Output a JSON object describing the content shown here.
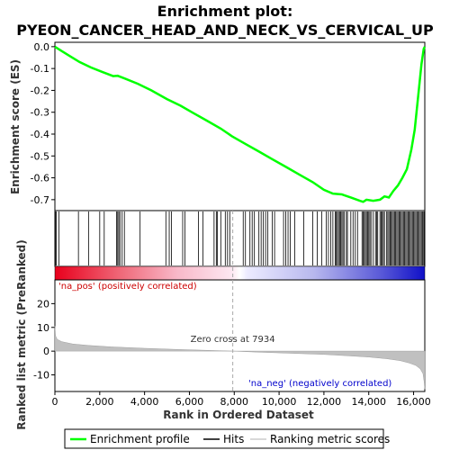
{
  "chart_data": {
    "type": "line",
    "title_line1": "Enrichment plot:",
    "title_line2": "PYEON_CANCER_HEAD_AND_NECK_VS_CERVICAL_UP",
    "es_panel": {
      "ylabel": "Enrichment score (ES)",
      "ylim": [
        -0.75,
        0.02
      ],
      "yticks": [
        "0.0",
        "-0.1",
        "-0.2",
        "-0.3",
        "-0.4",
        "-0.5",
        "-0.6",
        "-0.7"
      ],
      "ytick_values": [
        0.0,
        -0.1,
        -0.2,
        -0.3,
        -0.4,
        -0.5,
        -0.6,
        -0.7
      ],
      "series_name": "Enrichment profile",
      "color": "#00ff00",
      "x": [
        0,
        300,
        700,
        1100,
        1600,
        2100,
        2600,
        2800,
        3100,
        3700,
        4300,
        5000,
        5600,
        6200,
        6800,
        7400,
        7900,
        8500,
        9100,
        9700,
        10300,
        10900,
        11500,
        12000,
        12400,
        12800,
        13200,
        13600,
        13750,
        13900,
        14200,
        14500,
        14700,
        14900,
        15100,
        15300,
        15500,
        15700,
        15900,
        16050,
        16150,
        16250,
        16350,
        16450,
        16500
      ],
      "y": [
        0.0,
        -0.02,
        -0.045,
        -0.07,
        -0.095,
        -0.115,
        -0.135,
        -0.133,
        -0.145,
        -0.17,
        -0.2,
        -0.24,
        -0.27,
        -0.305,
        -0.34,
        -0.375,
        -0.41,
        -0.445,
        -0.48,
        -0.515,
        -0.55,
        -0.585,
        -0.62,
        -0.655,
        -0.672,
        -0.676,
        -0.69,
        -0.705,
        -0.71,
        -0.7,
        -0.705,
        -0.7,
        -0.685,
        -0.69,
        -0.66,
        -0.635,
        -0.6,
        -0.56,
        -0.47,
        -0.38,
        -0.28,
        -0.18,
        -0.08,
        -0.01,
        0.0
      ]
    },
    "hits": [
      20,
      60,
      180,
      1050,
      1500,
      2000,
      2200,
      2750,
      2800,
      2850,
      2900,
      3000,
      3100,
      3800,
      4950,
      5100,
      5200,
      5700,
      5800,
      6400,
      6600,
      7100,
      7200,
      7250,
      7400,
      7600,
      7700,
      7800,
      8400,
      8500,
      8700,
      8800,
      8900,
      9100,
      9200,
      9300,
      9400,
      9500,
      9700,
      9800,
      10200,
      10300,
      10400,
      10500,
      10700,
      11100,
      11500,
      11700,
      11900,
      12100,
      12200,
      12300,
      12400,
      12500,
      12550,
      12600,
      12650,
      12700,
      12750,
      12800,
      12850,
      12900,
      13000,
      13050,
      13200,
      13300,
      13400,
      13500,
      13700,
      13750,
      13800,
      13850,
      13900,
      13950,
      14000,
      14050,
      14100,
      14200,
      14300,
      14350,
      14400,
      14500,
      14550,
      14600,
      14650,
      14700,
      14800,
      14850,
      14900,
      14950,
      15000,
      15050,
      15100,
      15150,
      15200,
      15250,
      15300,
      15350,
      15400,
      15450,
      15500,
      15550,
      15600,
      15650,
      15700,
      15750,
      15800,
      15850,
      15900,
      15950,
      16000,
      16050,
      16100,
      16150,
      16200,
      16250,
      16300,
      16350,
      16400,
      16450,
      16480
    ],
    "ranked_panel": {
      "ylabel": "Ranked list metric (PreRanked)",
      "ylim": [
        -17,
        30
      ],
      "yticks": [
        "20",
        "10",
        "0",
        "-10"
      ],
      "ytick_values": [
        20,
        10,
        0,
        -10
      ],
      "x": [
        0,
        30,
        100,
        300,
        800,
        1500,
        2500,
        4000,
        5500,
        7000,
        7934,
        9000,
        10500,
        12000,
        13000,
        14000,
        14800,
        15400,
        15800,
        16100,
        16300,
        16420,
        16470,
        16500
      ],
      "y": [
        10.5,
        6.5,
        5,
        4,
        3,
        2.4,
        1.8,
        1.2,
        0.7,
        0.3,
        0.0,
        -0.4,
        -0.9,
        -1.4,
        -1.9,
        -2.5,
        -3.2,
        -4,
        -5,
        -6,
        -7.5,
        -9.5,
        -13,
        -16
      ],
      "zero_cross_label": "Zero cross at 7934",
      "zero_cross_x": 7934,
      "pos_label": "'na_pos' (positively correlated)",
      "neg_label": "'na_neg' (negatively correlated)",
      "pos_color": "#cc0000",
      "neg_color": "#0000cc"
    },
    "xaxis": {
      "label": "Rank in Ordered Dataset",
      "xlim": [
        0,
        16500
      ],
      "ticks": [
        "0",
        "2,000",
        "4,000",
        "6,000",
        "8,000",
        "10,000",
        "12,000",
        "14,000",
        "16,000"
      ],
      "tick_values": [
        0,
        2000,
        4000,
        6000,
        8000,
        10000,
        12000,
        14000,
        16000
      ]
    },
    "legend": {
      "placement": "bottom",
      "entries": [
        "Enrichment profile",
        "Hits",
        "Ranking metric scores"
      ],
      "colors": [
        "#00ff00",
        "#000000",
        "#cccccc"
      ]
    }
  }
}
